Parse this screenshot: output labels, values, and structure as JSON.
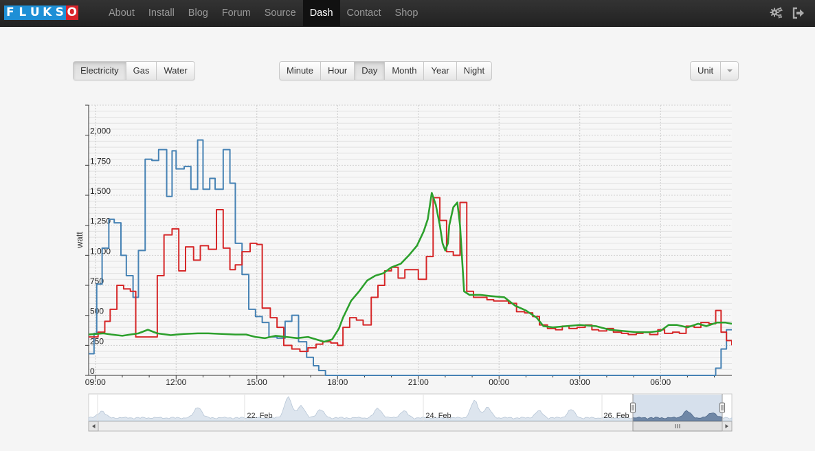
{
  "logo": {
    "letters": [
      "F",
      "L",
      "U",
      "K",
      "S",
      "O"
    ]
  },
  "nav": {
    "items": [
      {
        "label": "About",
        "active": false
      },
      {
        "label": "Install",
        "active": false
      },
      {
        "label": "Blog",
        "active": false
      },
      {
        "label": "Forum",
        "active": false
      },
      {
        "label": "Source",
        "active": false
      },
      {
        "label": "Dash",
        "active": true
      },
      {
        "label": "Contact",
        "active": false
      },
      {
        "label": "Shop",
        "active": false
      }
    ],
    "right_icons": [
      "gears-icon",
      "logout-icon"
    ]
  },
  "type_buttons": [
    {
      "label": "Electricity",
      "active": true
    },
    {
      "label": "Gas",
      "active": false
    },
    {
      "label": "Water",
      "active": false
    }
  ],
  "interval_buttons": [
    {
      "label": "Minute",
      "active": false
    },
    {
      "label": "Hour",
      "active": false
    },
    {
      "label": "Day",
      "active": true
    },
    {
      "label": "Month",
      "active": false
    },
    {
      "label": "Year",
      "active": false
    },
    {
      "label": "Night",
      "active": false
    }
  ],
  "unit_button": {
    "label": "Unit"
  },
  "colors": {
    "blue": "#4682b4",
    "red": "#d62728",
    "green": "#2ca02c",
    "grid": "#cccccc"
  },
  "chart_data": {
    "type": "line",
    "ylabel": "watt",
    "ylim": [
      0,
      2250
    ],
    "yticks": [
      0,
      250,
      500,
      750,
      1000,
      1250,
      1500,
      1750,
      2000
    ],
    "ytick_labels": [
      "0",
      "250",
      "500",
      "750",
      "1,000",
      "1,250",
      "1,500",
      "1,750",
      "2,000"
    ],
    "xlim_hours": [
      8.75,
      32.65
    ],
    "xticks": [
      {
        "h": 9,
        "label": "09:00"
      },
      {
        "h": 12,
        "label": "12:00"
      },
      {
        "h": 15,
        "label": "15:00"
      },
      {
        "h": 18,
        "label": "18:00"
      },
      {
        "h": 21,
        "label": "21:00"
      },
      {
        "h": 24,
        "label": "00:00"
      },
      {
        "h": 27,
        "label": "03:00"
      },
      {
        "h": 30,
        "label": "06:00"
      }
    ],
    "series": [
      {
        "color_key": "blue",
        "step": true,
        "points": [
          [
            8.75,
            180
          ],
          [
            8.95,
            350
          ],
          [
            9.05,
            760
          ],
          [
            9.25,
            1060
          ],
          [
            9.5,
            1300
          ],
          [
            9.7,
            1270
          ],
          [
            9.95,
            1000
          ],
          [
            10.15,
            830
          ],
          [
            10.4,
            650
          ],
          [
            10.6,
            1040
          ],
          [
            10.85,
            1800
          ],
          [
            11.1,
            1790
          ],
          [
            11.35,
            1880
          ],
          [
            11.65,
            1490
          ],
          [
            11.85,
            1870
          ],
          [
            12.0,
            1720
          ],
          [
            12.3,
            1740
          ],
          [
            12.55,
            1550
          ],
          [
            12.8,
            1960
          ],
          [
            13.0,
            1550
          ],
          [
            13.25,
            1640
          ],
          [
            13.45,
            1550
          ],
          [
            13.75,
            1880
          ],
          [
            14.0,
            1600
          ],
          [
            14.2,
            1100
          ],
          [
            14.45,
            840
          ],
          [
            14.7,
            550
          ],
          [
            14.95,
            490
          ],
          [
            15.2,
            440
          ],
          [
            15.45,
            320
          ],
          [
            15.75,
            310
          ],
          [
            16.05,
            450
          ],
          [
            16.3,
            500
          ],
          [
            16.55,
            280
          ],
          [
            16.85,
            150
          ],
          [
            17.1,
            80
          ],
          [
            17.3,
            40
          ],
          [
            17.55,
            0
          ],
          [
            31.95,
            0
          ],
          [
            32.05,
            60
          ],
          [
            32.25,
            220
          ],
          [
            32.45,
            380
          ],
          [
            32.65,
            380
          ]
        ]
      },
      {
        "color_key": "red",
        "step": true,
        "points": [
          [
            8.75,
            320
          ],
          [
            9.1,
            360
          ],
          [
            9.35,
            450
          ],
          [
            9.55,
            550
          ],
          [
            9.8,
            750
          ],
          [
            10.05,
            720
          ],
          [
            10.3,
            700
          ],
          [
            10.5,
            320
          ],
          [
            10.95,
            320
          ],
          [
            11.3,
            830
          ],
          [
            11.55,
            1170
          ],
          [
            11.85,
            1220
          ],
          [
            12.1,
            870
          ],
          [
            12.35,
            1070
          ],
          [
            12.65,
            960
          ],
          [
            12.9,
            1080
          ],
          [
            13.2,
            1050
          ],
          [
            13.5,
            1380
          ],
          [
            13.75,
            1060
          ],
          [
            14.0,
            880
          ],
          [
            14.2,
            920
          ],
          [
            14.45,
            1030
          ],
          [
            14.75,
            1100
          ],
          [
            15.0,
            1090
          ],
          [
            15.2,
            560
          ],
          [
            15.5,
            480
          ],
          [
            15.75,
            400
          ],
          [
            16.0,
            250
          ],
          [
            16.3,
            220
          ],
          [
            16.6,
            200
          ],
          [
            16.9,
            230
          ],
          [
            17.2,
            260
          ],
          [
            17.45,
            280
          ],
          [
            17.75,
            270
          ],
          [
            18.0,
            250
          ],
          [
            18.2,
            400
          ],
          [
            18.45,
            480
          ],
          [
            18.7,
            460
          ],
          [
            18.95,
            420
          ],
          [
            19.25,
            650
          ],
          [
            19.5,
            750
          ],
          [
            19.75,
            870
          ],
          [
            20.0,
            900
          ],
          [
            20.25,
            810
          ],
          [
            20.5,
            880
          ],
          [
            20.8,
            880
          ],
          [
            21.0,
            800
          ],
          [
            21.3,
            990
          ],
          [
            21.55,
            1480
          ],
          [
            21.8,
            1290
          ],
          [
            22.05,
            1030
          ],
          [
            22.3,
            1000
          ],
          [
            22.55,
            1440
          ],
          [
            22.8,
            700
          ],
          [
            23.05,
            650
          ],
          [
            23.3,
            650
          ],
          [
            23.55,
            630
          ],
          [
            23.8,
            620
          ],
          [
            24.1,
            620
          ],
          [
            24.35,
            600
          ],
          [
            24.65,
            530
          ],
          [
            24.95,
            520
          ],
          [
            25.25,
            490
          ],
          [
            25.5,
            420
          ],
          [
            25.8,
            390
          ],
          [
            26.1,
            380
          ],
          [
            26.35,
            410
          ],
          [
            26.6,
            390
          ],
          [
            26.9,
            400
          ],
          [
            27.2,
            420
          ],
          [
            27.45,
            380
          ],
          [
            27.7,
            370
          ],
          [
            28.0,
            390
          ],
          [
            28.25,
            360
          ],
          [
            28.55,
            350
          ],
          [
            28.8,
            340
          ],
          [
            29.1,
            350
          ],
          [
            29.35,
            360
          ],
          [
            29.6,
            340
          ],
          [
            29.9,
            380
          ],
          [
            30.15,
            350
          ],
          [
            30.45,
            360
          ],
          [
            30.7,
            350
          ],
          [
            30.95,
            410
          ],
          [
            31.25,
            400
          ],
          [
            31.5,
            440
          ],
          [
            31.8,
            430
          ],
          [
            32.05,
            540
          ],
          [
            32.25,
            360
          ],
          [
            32.45,
            290
          ],
          [
            32.65,
            250
          ]
        ]
      },
      {
        "color_key": "green",
        "step": false,
        "points": [
          [
            8.75,
            340
          ],
          [
            9.3,
            350
          ],
          [
            9.6,
            340
          ],
          [
            10.0,
            330
          ],
          [
            10.6,
            350
          ],
          [
            10.95,
            380
          ],
          [
            11.3,
            350
          ],
          [
            11.8,
            335
          ],
          [
            12.3,
            345
          ],
          [
            12.8,
            350
          ],
          [
            13.2,
            350
          ],
          [
            13.7,
            345
          ],
          [
            14.2,
            340
          ],
          [
            14.6,
            340
          ],
          [
            14.95,
            320
          ],
          [
            15.3,
            310
          ],
          [
            15.7,
            330
          ],
          [
            16.1,
            320
          ],
          [
            16.5,
            310
          ],
          [
            16.9,
            320
          ],
          [
            17.2,
            300
          ],
          [
            17.5,
            280
          ],
          [
            17.8,
            300
          ],
          [
            18.05,
            390
          ],
          [
            18.2,
            480
          ],
          [
            18.5,
            620
          ],
          [
            18.8,
            700
          ],
          [
            19.1,
            790
          ],
          [
            19.4,
            830
          ],
          [
            19.7,
            850
          ],
          [
            20.0,
            900
          ],
          [
            20.35,
            930
          ],
          [
            20.65,
            1000
          ],
          [
            20.95,
            1080
          ],
          [
            21.2,
            1200
          ],
          [
            21.35,
            1300
          ],
          [
            21.5,
            1520
          ],
          [
            21.65,
            1420
          ],
          [
            21.8,
            1250
          ],
          [
            21.9,
            1100
          ],
          [
            22.0,
            1040
          ],
          [
            22.1,
            1100
          ],
          [
            22.15,
            1250
          ],
          [
            22.3,
            1400
          ],
          [
            22.45,
            1440
          ],
          [
            22.55,
            1250
          ],
          [
            22.7,
            700
          ],
          [
            22.9,
            670
          ],
          [
            23.3,
            670
          ],
          [
            23.7,
            660
          ],
          [
            24.2,
            650
          ],
          [
            24.6,
            580
          ],
          [
            25.0,
            540
          ],
          [
            25.4,
            480
          ],
          [
            25.65,
            410
          ],
          [
            26.0,
            400
          ],
          [
            26.5,
            410
          ],
          [
            27.0,
            420
          ],
          [
            27.6,
            410
          ],
          [
            28.1,
            380
          ],
          [
            28.6,
            370
          ],
          [
            29.1,
            360
          ],
          [
            29.6,
            360
          ],
          [
            30.0,
            370
          ],
          [
            30.3,
            420
          ],
          [
            30.6,
            420
          ],
          [
            31.0,
            400
          ],
          [
            31.4,
            430
          ],
          [
            31.7,
            410
          ],
          [
            32.1,
            440
          ],
          [
            32.4,
            440
          ],
          [
            32.65,
            430
          ]
        ]
      }
    ],
    "navigator": {
      "date_labels": [
        "22. Feb",
        "24. Feb",
        "26. Feb"
      ]
    }
  }
}
